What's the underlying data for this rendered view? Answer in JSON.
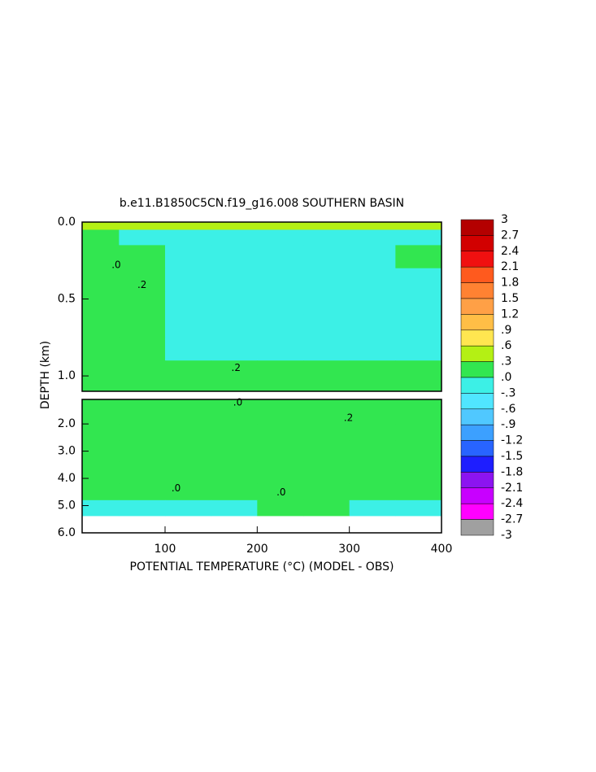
{
  "chart_data": {
    "type": "contour",
    "title": "b.e11.B1850C5CN.f19_g16.008 SOUTHERN BASIN",
    "x_label": "POTENTIAL TEMPERATURE (°C) (MODEL - OBS)",
    "y_label": "DEPTH (km)",
    "xlim": [
      10,
      400
    ],
    "xticks": [
      100,
      200,
      300,
      400
    ],
    "panels": [
      {
        "ylim": [
          0,
          1.1
        ],
        "yticks": [
          {
            "value": 0,
            "label": "0.0"
          },
          {
            "value": 0.5,
            "label": "0.5"
          },
          {
            "value": 1,
            "label": "1.0"
          }
        ],
        "x_edges": [
          10,
          50,
          100,
          150,
          200,
          250,
          300,
          350,
          400
        ],
        "depth_edges": [
          0,
          0.05,
          0.15,
          0.3,
          0.45,
          0.6,
          0.75,
          0.9,
          1.1
        ],
        "values": [
          [
            0.5,
            0.4,
            0.4,
            0.4,
            0.4,
            0.4,
            0.4,
            0.4
          ],
          [
            0.1,
            -0.1,
            -0.1,
            -0.1,
            -0.1,
            -0.1,
            -0.1,
            -0.1
          ],
          [
            0.1,
            0.05,
            -0.05,
            -0.1,
            -0.1,
            -0.1,
            -0.05,
            0.05
          ],
          [
            0.1,
            0.05,
            -0.15,
            -0.2,
            -0.2,
            -0.2,
            -0.15,
            -0.1
          ],
          [
            0.1,
            0.02,
            -0.2,
            -0.25,
            -0.25,
            -0.25,
            -0.2,
            -0.15
          ],
          [
            0.1,
            0.02,
            -0.25,
            -0.28,
            -0.28,
            -0.25,
            -0.2,
            -0.15
          ],
          [
            0.1,
            0.05,
            -0.15,
            -0.2,
            -0.2,
            -0.2,
            -0.15,
            -0.1
          ],
          [
            0.15,
            0.1,
            0.05,
            0.02,
            0.02,
            0.05,
            0.05,
            0.08
          ]
        ],
        "contour_labels": [
          {
            "text": ".0",
            "x": 47,
            "depth": 0.28
          },
          {
            "text": ".2",
            "x": 75,
            "depth": 0.41
          },
          {
            "text": ".2",
            "x": 177,
            "depth": 0.95
          }
        ]
      },
      {
        "ylim": [
          1.1,
          6
        ],
        "yticks": [
          {
            "value": 2,
            "label": "2.0"
          },
          {
            "value": 3,
            "label": "3.0"
          },
          {
            "value": 4,
            "label": "4.0"
          },
          {
            "value": 5,
            "label": "5.0"
          },
          {
            "value": 6,
            "label": "6.0"
          }
        ],
        "x_edges": [
          10,
          50,
          100,
          150,
          200,
          250,
          300,
          350,
          400
        ],
        "depth_edges": [
          1.1,
          2.0,
          2.6,
          3.4,
          4.2,
          4.8,
          5.37
        ],
        "values": [
          [
            0.1,
            0.1,
            0.15,
            0.2,
            0.2,
            0.2,
            0.25,
            0.25
          ],
          [
            0.1,
            0.15,
            0.2,
            0.25,
            0.28,
            0.28,
            0.28,
            0.28
          ],
          [
            0.15,
            0.2,
            0.25,
            0.28,
            0.28,
            0.28,
            0.28,
            0.28
          ],
          [
            0.1,
            0.12,
            0.15,
            0.18,
            0.2,
            0.2,
            0.2,
            0.2
          ],
          [
            0.05,
            0.05,
            0.05,
            0.05,
            0.05,
            0.05,
            0.05,
            0.05
          ],
          [
            -0.05,
            -0.05,
            -0.02,
            -0.02,
            0.02,
            0.02,
            -0.02,
            -0.05
          ]
        ],
        "contour_labels": [
          {
            "text": ".0",
            "x": 179,
            "depth": 1.22
          },
          {
            "text": ".2",
            "x": 299,
            "depth": 1.79
          },
          {
            "text": ".0",
            "x": 112,
            "depth": 4.37
          },
          {
            "text": ".0",
            "x": 226,
            "depth": 4.52
          }
        ]
      }
    ],
    "colorbar": {
      "levels": [
        3,
        2.7,
        2.4,
        2.1,
        1.8,
        1.5,
        1.2,
        {
          "value": 0.9,
          "label": ".9"
        },
        {
          "value": 0.6,
          "label": ".6"
        },
        {
          "value": 0.3,
          "label": ".3"
        },
        {
          "value": 0,
          "label": ".0"
        },
        {
          "value": -0.3,
          "label": "-.3"
        },
        {
          "value": -0.6,
          "label": "-.6"
        },
        {
          "value": -0.9,
          "label": "-.9"
        },
        -1.2,
        -1.5,
        -1.8,
        -2.1,
        -2.4,
        -2.7,
        -3
      ],
      "colors": [
        "#b40000",
        "#d20000",
        "#f01010",
        "#ff5a1e",
        "#ff8232",
        "#ffa046",
        "#ffbe46",
        "#ffe650",
        "#b4f014",
        "#32e650",
        "#3cf0e6",
        "#50e6ff",
        "#50c8ff",
        "#3ca0ff",
        "#2864ff",
        "#1e1eff",
        "#8c14f0",
        "#c800ff",
        "#ff00ff",
        "#a0a0a0"
      ]
    }
  }
}
